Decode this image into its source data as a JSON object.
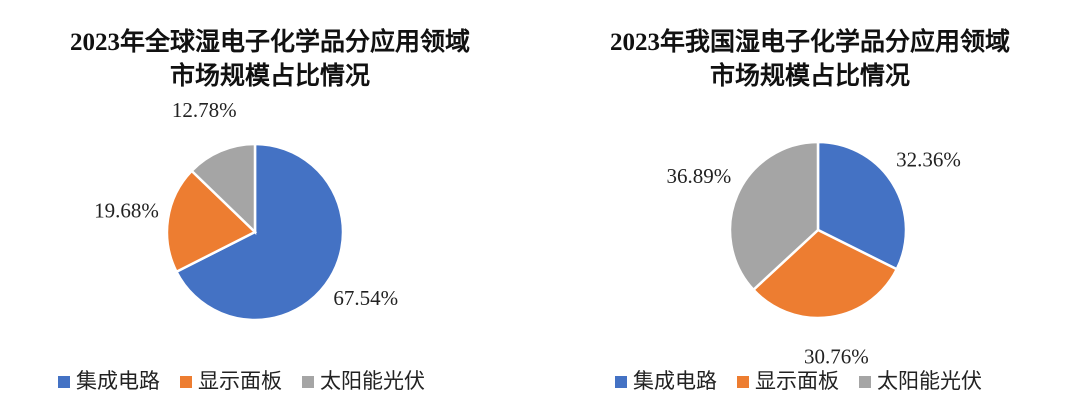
{
  "chart_data": [
    {
      "type": "pie",
      "title": "2023年全球湿电子化学品分应用领域市场规模占比情况",
      "categories": [
        "集成电路",
        "显示面板",
        "太阳能光伏"
      ],
      "values": [
        67.54,
        19.68,
        12.78
      ],
      "value_labels": [
        "67.54%",
        "19.68%",
        "12.78%"
      ],
      "colors": [
        "#4472c4",
        "#ed7d31",
        "#a5a5a5"
      ],
      "legend": "bottom"
    },
    {
      "type": "pie",
      "title": "2023年我国湿电子化学品分应用领域市场规模占比情况",
      "categories": [
        "集成电路",
        "显示面板",
        "太阳能光伏"
      ],
      "values": [
        32.36,
        30.76,
        36.89
      ],
      "value_labels": [
        "32.36%",
        "30.76%",
        "36.89%"
      ],
      "colors": [
        "#4472c4",
        "#ed7d31",
        "#a5a5a5"
      ],
      "legend": "bottom"
    }
  ]
}
